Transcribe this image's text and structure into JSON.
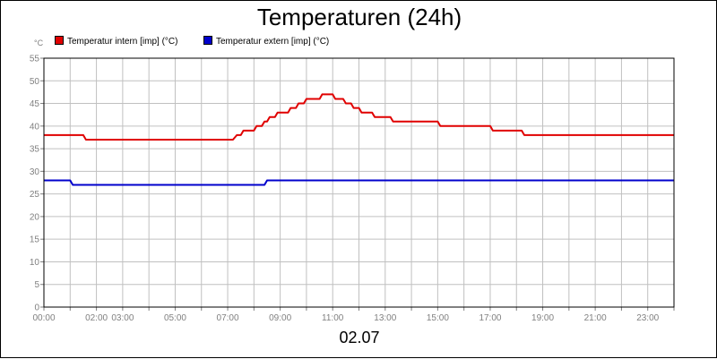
{
  "chart_data": {
    "type": "line",
    "title": "Temperaturen (24h)",
    "xlabel": "02.07",
    "ylabel": "°C",
    "xlim": [
      0,
      24
    ],
    "ylim": [
      0,
      55
    ],
    "y_ticks": [
      0,
      5,
      10,
      15,
      20,
      25,
      30,
      35,
      40,
      45,
      50,
      55
    ],
    "x_tick_labels": [
      {
        "x": 0,
        "label": "00:00"
      },
      {
        "x": 2,
        "label": "02:00"
      },
      {
        "x": 3,
        "label": "03:00"
      },
      {
        "x": 5,
        "label": "05:00"
      },
      {
        "x": 7,
        "label": "07:00"
      },
      {
        "x": 9,
        "label": "09:00"
      },
      {
        "x": 11,
        "label": "11:00"
      },
      {
        "x": 13,
        "label": "13:00"
      },
      {
        "x": 15,
        "label": "15:00"
      },
      {
        "x": 17,
        "label": "17:00"
      },
      {
        "x": 19,
        "label": "19:00"
      },
      {
        "x": 21,
        "label": "21:00"
      },
      {
        "x": 23,
        "label": "23:00"
      }
    ],
    "grid": true,
    "legend_placement": "top-left",
    "series": [
      {
        "name": "Temperatur intern [imp] (°C)",
        "color": "#e00000",
        "points": [
          [
            0,
            38
          ],
          [
            1.5,
            38
          ],
          [
            1.6,
            37
          ],
          [
            7.2,
            37
          ],
          [
            7.35,
            38
          ],
          [
            7.5,
            38
          ],
          [
            7.6,
            39
          ],
          [
            8.0,
            39
          ],
          [
            8.1,
            40
          ],
          [
            8.3,
            40
          ],
          [
            8.4,
            41
          ],
          [
            8.5,
            41
          ],
          [
            8.6,
            42
          ],
          [
            8.8,
            42
          ],
          [
            8.9,
            43
          ],
          [
            9.3,
            43
          ],
          [
            9.4,
            44
          ],
          [
            9.6,
            44
          ],
          [
            9.7,
            45
          ],
          [
            9.9,
            45
          ],
          [
            10.0,
            46
          ],
          [
            10.5,
            46
          ],
          [
            10.6,
            47
          ],
          [
            11.0,
            47
          ],
          [
            11.1,
            46
          ],
          [
            11.4,
            46
          ],
          [
            11.5,
            45
          ],
          [
            11.7,
            45
          ],
          [
            11.8,
            44
          ],
          [
            12.0,
            44
          ],
          [
            12.1,
            43
          ],
          [
            12.5,
            43
          ],
          [
            12.6,
            42
          ],
          [
            13.2,
            42
          ],
          [
            13.3,
            41
          ],
          [
            15.0,
            41
          ],
          [
            15.1,
            40
          ],
          [
            17.0,
            40
          ],
          [
            17.1,
            39
          ],
          [
            18.2,
            39
          ],
          [
            18.3,
            38
          ],
          [
            24,
            38
          ]
        ]
      },
      {
        "name": "Temperatur extern [imp] (°C)",
        "color": "#0000cc",
        "points": [
          [
            0,
            28
          ],
          [
            1.0,
            28
          ],
          [
            1.1,
            27
          ],
          [
            8.4,
            27
          ],
          [
            8.5,
            28
          ],
          [
            24,
            28
          ]
        ]
      }
    ]
  }
}
